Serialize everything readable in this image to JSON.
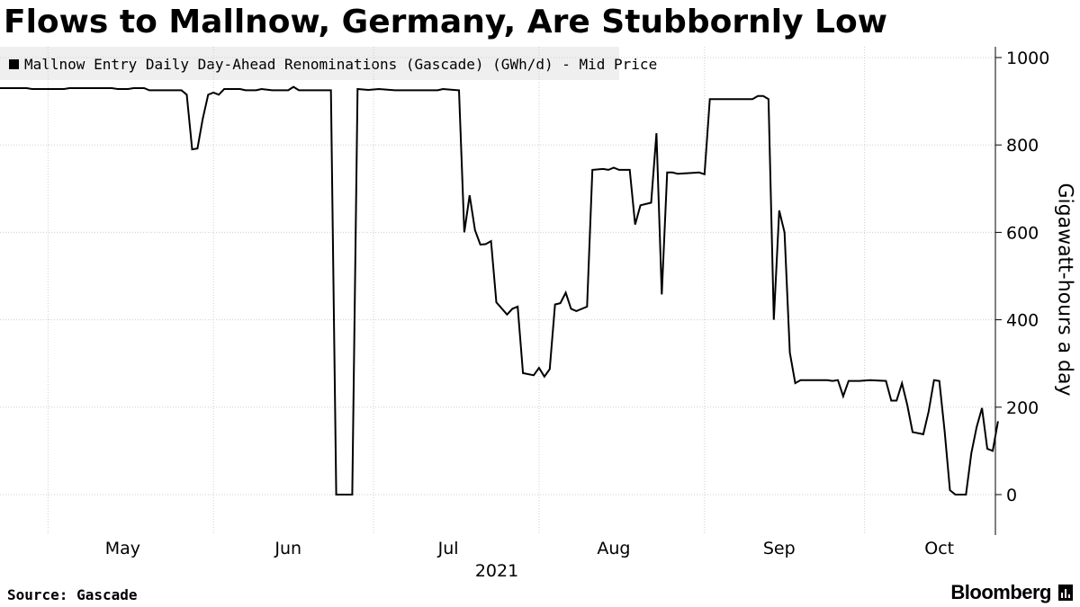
{
  "title": "Flows to Mallnow, Germany, Are Stubbornly Low",
  "legend": {
    "label": "Mallnow Entry Daily Day-Ahead Renominations (Gascade) (GWh/d) - Mid Price"
  },
  "source": "Source: Gascade",
  "brand": "Bloomberg",
  "chart_data": {
    "type": "line",
    "title": "Flows to Mallnow, Germany, Are Stubbornly Low",
    "ylabel": "Gigawatt-hours a day",
    "year_label": "2021",
    "ylim": [
      -90,
      1020
    ],
    "y_ticks": [
      0,
      200,
      400,
      600,
      800,
      1000
    ],
    "grid": true,
    "line_color": "#000000",
    "month_labels": [
      "May",
      "Jun",
      "Jul",
      "Aug",
      "Sep",
      "Oct"
    ],
    "series": [
      {
        "name": "Mallnow Entry Daily Day-Ahead Renominations (Gascade) (GWh/d) - Mid Price",
        "points": [
          [
            "2021-04-22",
            930
          ],
          [
            "2021-04-27",
            930
          ],
          [
            "2021-04-28",
            928
          ],
          [
            "2021-05-04",
            928
          ],
          [
            "2021-05-05",
            930
          ],
          [
            "2021-05-13",
            930
          ],
          [
            "2021-05-14",
            928
          ],
          [
            "2021-05-16",
            928
          ],
          [
            "2021-05-17",
            930
          ],
          [
            "2021-05-19",
            930
          ],
          [
            "2021-05-20",
            925
          ],
          [
            "2021-05-26",
            925
          ],
          [
            "2021-05-27",
            915
          ],
          [
            "2021-05-28",
            790
          ],
          [
            "2021-05-29",
            792
          ],
          [
            "2021-05-30",
            860
          ],
          [
            "2021-05-31",
            915
          ],
          [
            "2021-06-01",
            920
          ],
          [
            "2021-06-02",
            915
          ],
          [
            "2021-06-03",
            928
          ],
          [
            "2021-06-06",
            928
          ],
          [
            "2021-06-07",
            925
          ],
          [
            "2021-06-09",
            925
          ],
          [
            "2021-06-10",
            928
          ],
          [
            "2021-06-12",
            925
          ],
          [
            "2021-06-15",
            925
          ],
          [
            "2021-06-16",
            933
          ],
          [
            "2021-06-17",
            925
          ],
          [
            "2021-06-23",
            925
          ],
          [
            "2021-06-24",
            0
          ],
          [
            "2021-06-27",
            0
          ],
          [
            "2021-06-28",
            928
          ],
          [
            "2021-06-30",
            926
          ],
          [
            "2021-07-02",
            928
          ],
          [
            "2021-07-05",
            925
          ],
          [
            "2021-07-13",
            925
          ],
          [
            "2021-07-14",
            928
          ],
          [
            "2021-07-17",
            925
          ],
          [
            "2021-07-18",
            600
          ],
          [
            "2021-07-19",
            685
          ],
          [
            "2021-07-20",
            605
          ],
          [
            "2021-07-21",
            572
          ],
          [
            "2021-07-22",
            573
          ],
          [
            "2021-07-23",
            580
          ],
          [
            "2021-07-24",
            440
          ],
          [
            "2021-07-26",
            412
          ],
          [
            "2021-07-27",
            425
          ],
          [
            "2021-07-28",
            430
          ],
          [
            "2021-07-29",
            278
          ],
          [
            "2021-07-31",
            273
          ],
          [
            "2021-08-01",
            290
          ],
          [
            "2021-08-02",
            270
          ],
          [
            "2021-08-03",
            287
          ],
          [
            "2021-08-04",
            435
          ],
          [
            "2021-08-05",
            438
          ],
          [
            "2021-08-06",
            462
          ],
          [
            "2021-08-07",
            425
          ],
          [
            "2021-08-08",
            420
          ],
          [
            "2021-08-10",
            430
          ],
          [
            "2021-08-11",
            743
          ],
          [
            "2021-08-13",
            745
          ],
          [
            "2021-08-14",
            743
          ],
          [
            "2021-08-15",
            748
          ],
          [
            "2021-08-16",
            743
          ],
          [
            "2021-08-18",
            743
          ],
          [
            "2021-08-19",
            618
          ],
          [
            "2021-08-20",
            662
          ],
          [
            "2021-08-22",
            668
          ],
          [
            "2021-08-23",
            827
          ],
          [
            "2021-08-24",
            458
          ],
          [
            "2021-08-25",
            737
          ],
          [
            "2021-08-26",
            737
          ],
          [
            "2021-08-27",
            734
          ],
          [
            "2021-08-31",
            737
          ],
          [
            "2021-09-01",
            733
          ],
          [
            "2021-09-02",
            905
          ],
          [
            "2021-09-06",
            905
          ],
          [
            "2021-09-07",
            905
          ],
          [
            "2021-09-10",
            905
          ],
          [
            "2021-09-11",
            912
          ],
          [
            "2021-09-12",
            912
          ],
          [
            "2021-09-13",
            905
          ],
          [
            "2021-09-14",
            400
          ],
          [
            "2021-09-15",
            650
          ],
          [
            "2021-09-16",
            600
          ],
          [
            "2021-09-17",
            325
          ],
          [
            "2021-09-18",
            255
          ],
          [
            "2021-09-19",
            262
          ],
          [
            "2021-09-24",
            262
          ],
          [
            "2021-09-25",
            260
          ],
          [
            "2021-09-26",
            262
          ],
          [
            "2021-09-27",
            225
          ],
          [
            "2021-09-28",
            260
          ],
          [
            "2021-09-30",
            260
          ],
          [
            "2021-10-02",
            262
          ],
          [
            "2021-10-05",
            260
          ],
          [
            "2021-10-06",
            215
          ],
          [
            "2021-10-07",
            215
          ],
          [
            "2021-10-08",
            255
          ],
          [
            "2021-10-09",
            205
          ],
          [
            "2021-10-10",
            143
          ],
          [
            "2021-10-12",
            138
          ],
          [
            "2021-10-13",
            190
          ],
          [
            "2021-10-14",
            262
          ],
          [
            "2021-10-15",
            260
          ],
          [
            "2021-10-16",
            145
          ],
          [
            "2021-10-17",
            10
          ],
          [
            "2021-10-18",
            0
          ],
          [
            "2021-10-20",
            0
          ],
          [
            "2021-10-21",
            95
          ],
          [
            "2021-10-22",
            155
          ],
          [
            "2021-10-23",
            198
          ],
          [
            "2021-10-24",
            105
          ],
          [
            "2021-10-25",
            100
          ],
          [
            "2021-10-26",
            168
          ]
        ]
      }
    ]
  }
}
